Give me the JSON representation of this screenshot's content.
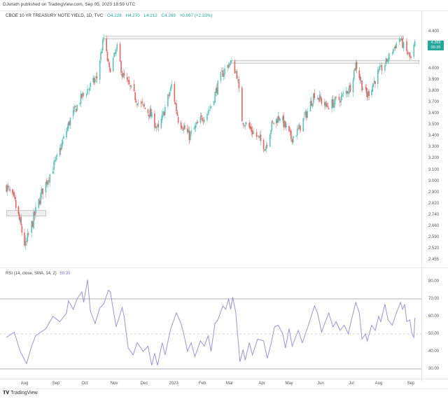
{
  "published": "DJwrath published on TradingView.com, Sep 05, 2023 18:59 UTC",
  "legend": {
    "symbol": "CBOE 10 YR TREASURY NOTE YIELD, 1D, TVC",
    "open": "O4.228",
    "high": "H4.270",
    "low": "L4.212",
    "close": "C4.269",
    "change": "+0.097 (+2.33%)"
  },
  "price_tag": {
    "value": "4.269",
    "countdown": "00:35"
  },
  "rsi_legend": {
    "label": "RSI (14, close, SMA, 14, 2)",
    "value": "59.30"
  },
  "watermark": {
    "logo": "TV",
    "text": "TradingView"
  },
  "colors": {
    "up": "#5fc1b4",
    "down": "#e06666",
    "rsi": "#9b95d3",
    "level": "#b0b0b0",
    "tag": "#26a69a"
  },
  "chart_data": [
    {
      "type": "candlestick",
      "title": "CBOE 10 YR TREASURY NOTE YIELD, 1D, TVC",
      "y_ticks": [
        "4.400",
        "4.000",
        "3.900",
        "3.800",
        "3.700",
        "3.600",
        "3.500",
        "3.400",
        "3.300",
        "3.200",
        "3.100",
        "3.000",
        "2.900",
        "2.820",
        "2.740",
        "2.660",
        "2.590",
        "2.520",
        "2.455"
      ],
      "x_ticks": [
        "Aug",
        "Sep",
        "Oct",
        "Nov",
        "Dec",
        "2023",
        "Feb",
        "Mar",
        "Apr",
        "May",
        "Jun",
        "Jul",
        "Aug",
        "Sep"
      ],
      "close_waypoints": [
        [
          "2022-07-11",
          2.95
        ],
        [
          "2022-07-21",
          2.82
        ],
        [
          "2022-08-02",
          2.53
        ],
        [
          "2022-08-18",
          2.9
        ],
        [
          "2022-09-02",
          3.2
        ],
        [
          "2022-09-16",
          3.55
        ],
        [
          "2022-09-28",
          3.75
        ],
        [
          "2022-10-14",
          3.92
        ],
        [
          "2022-10-21",
          4.33
        ],
        [
          "2022-10-27",
          3.98
        ],
        [
          "2022-11-04",
          4.22
        ],
        [
          "2022-11-09",
          3.95
        ],
        [
          "2022-11-25",
          3.7
        ],
        [
          "2022-12-07",
          3.6
        ],
        [
          "2022-12-16",
          3.45
        ],
        [
          "2022-12-30",
          3.85
        ],
        [
          "2023-01-06",
          3.55
        ],
        [
          "2023-01-18",
          3.4
        ],
        [
          "2023-01-31",
          3.55
        ],
        [
          "2023-02-09",
          3.65
        ],
        [
          "2023-02-21",
          3.95
        ],
        [
          "2023-03-02",
          4.07
        ],
        [
          "2023-03-08",
          3.95
        ],
        [
          "2023-03-13",
          3.55
        ],
        [
          "2023-03-22",
          3.45
        ],
        [
          "2023-04-05",
          3.3
        ],
        [
          "2023-04-12",
          3.5
        ],
        [
          "2023-04-21",
          3.58
        ],
        [
          "2023-05-03",
          3.38
        ],
        [
          "2023-05-10",
          3.45
        ],
        [
          "2023-05-18",
          3.6
        ],
        [
          "2023-05-26",
          3.78
        ],
        [
          "2023-06-07",
          3.66
        ],
        [
          "2023-06-21",
          3.74
        ],
        [
          "2023-06-30",
          3.84
        ],
        [
          "2023-07-06",
          4.05
        ],
        [
          "2023-07-13",
          3.85
        ],
        [
          "2023-07-19",
          3.76
        ],
        [
          "2023-07-31",
          3.95
        ],
        [
          "2023-08-07",
          4.05
        ],
        [
          "2023-08-14",
          4.19
        ],
        [
          "2023-08-21",
          4.33
        ],
        [
          "2023-08-25",
          4.24
        ],
        [
          "2023-09-01",
          4.1
        ],
        [
          "2023-09-05",
          4.27
        ]
      ],
      "horizontal_levels": [
        {
          "price": 4.33,
          "from": "2022-10-21",
          "to": "2023-08-21"
        },
        {
          "price": 4.07,
          "from": "2023-03-02",
          "to": "2023-09-05"
        },
        {
          "price_range": [
            2.74,
            2.77
          ],
          "from": "2022-07-11",
          "to": "2022-08-22"
        }
      ]
    },
    {
      "type": "line",
      "title": "RSI (14, close, SMA, 14, 2)",
      "y_ticks": [
        "80.00",
        "70.00",
        "60.00",
        "50.00",
        "40.00",
        "30.00"
      ],
      "ylim": [
        25,
        85
      ],
      "levels": [
        70,
        50,
        30
      ],
      "points": [
        [
          "2022-07-11",
          48
        ],
        [
          "2022-07-20",
          51
        ],
        [
          "2022-07-27",
          40
        ],
        [
          "2022-08-03",
          33
        ],
        [
          "2022-08-08",
          43
        ],
        [
          "2022-08-12",
          49
        ],
        [
          "2022-08-22",
          53
        ],
        [
          "2022-08-29",
          60
        ],
        [
          "2022-09-05",
          57
        ],
        [
          "2022-09-12",
          62
        ],
        [
          "2022-09-14",
          69
        ],
        [
          "2022-09-19",
          64
        ],
        [
          "2022-09-23",
          70
        ],
        [
          "2022-09-28",
          74
        ],
        [
          "2022-09-30",
          68
        ],
        [
          "2022-10-04",
          81
        ],
        [
          "2022-10-07",
          63
        ],
        [
          "2022-10-12",
          56
        ],
        [
          "2022-10-17",
          65
        ],
        [
          "2022-10-21",
          67
        ],
        [
          "2022-10-26",
          75
        ],
        [
          "2022-10-28",
          74
        ],
        [
          "2022-11-03",
          54
        ],
        [
          "2022-11-09",
          65
        ],
        [
          "2022-11-11",
          60
        ],
        [
          "2022-11-15",
          42
        ],
        [
          "2022-11-20",
          38
        ],
        [
          "2022-11-24",
          45
        ],
        [
          "2022-11-30",
          40
        ],
        [
          "2022-12-05",
          43
        ],
        [
          "2022-12-09",
          32
        ],
        [
          "2022-12-12",
          39
        ],
        [
          "2022-12-15",
          32
        ],
        [
          "2022-12-20",
          45
        ],
        [
          "2022-12-23",
          38
        ],
        [
          "2022-12-29",
          53
        ],
        [
          "2023-01-04",
          62
        ],
        [
          "2023-01-09",
          56
        ],
        [
          "2023-01-12",
          50
        ],
        [
          "2023-01-16",
          40
        ],
        [
          "2023-01-20",
          45
        ],
        [
          "2023-01-24",
          37
        ],
        [
          "2023-01-30",
          46
        ],
        [
          "2023-02-03",
          43
        ],
        [
          "2023-02-07",
          49
        ],
        [
          "2023-02-10",
          40
        ],
        [
          "2023-02-14",
          56
        ],
        [
          "2023-02-17",
          58
        ],
        [
          "2023-02-22",
          66
        ],
        [
          "2023-02-25",
          64
        ],
        [
          "2023-02-28",
          70
        ],
        [
          "2023-03-02",
          64
        ],
        [
          "2023-03-04",
          71
        ],
        [
          "2023-03-07",
          62
        ],
        [
          "2023-03-11",
          34
        ],
        [
          "2023-03-14",
          41
        ],
        [
          "2023-03-16",
          35
        ],
        [
          "2023-03-20",
          45
        ],
        [
          "2023-03-23",
          38
        ],
        [
          "2023-03-28",
          47
        ],
        [
          "2023-04-03",
          46
        ],
        [
          "2023-04-07",
          36
        ],
        [
          "2023-04-11",
          44
        ],
        [
          "2023-04-15",
          54
        ],
        [
          "2023-04-19",
          55
        ],
        [
          "2023-04-24",
          50
        ],
        [
          "2023-04-27",
          42
        ],
        [
          "2023-05-01",
          53
        ],
        [
          "2023-05-04",
          43
        ],
        [
          "2023-05-10",
          52
        ],
        [
          "2023-05-14",
          45
        ],
        [
          "2023-05-20",
          55
        ],
        [
          "2023-05-26",
          66
        ],
        [
          "2023-05-29",
          62
        ],
        [
          "2023-06-02",
          51
        ],
        [
          "2023-06-05",
          56
        ],
        [
          "2023-06-09",
          62
        ],
        [
          "2023-06-13",
          54
        ],
        [
          "2023-06-16",
          57
        ],
        [
          "2023-06-20",
          52
        ],
        [
          "2023-06-24",
          55
        ],
        [
          "2023-06-28",
          50
        ],
        [
          "2023-07-01",
          58
        ],
        [
          "2023-07-06",
          68
        ],
        [
          "2023-07-10",
          62
        ],
        [
          "2023-07-13",
          47
        ],
        [
          "2023-07-17",
          50
        ],
        [
          "2023-07-19",
          46
        ],
        [
          "2023-07-24",
          55
        ],
        [
          "2023-07-28",
          52
        ],
        [
          "2023-08-01",
          60
        ],
        [
          "2023-08-03",
          57
        ],
        [
          "2023-08-07",
          67
        ],
        [
          "2023-08-10",
          58
        ],
        [
          "2023-08-14",
          55
        ],
        [
          "2023-08-18",
          62
        ],
        [
          "2023-08-22",
          68
        ],
        [
          "2023-08-24",
          64
        ],
        [
          "2023-08-26",
          67
        ],
        [
          "2023-08-28",
          57
        ],
        [
          "2023-08-31",
          58
        ],
        [
          "2023-09-02",
          50
        ],
        [
          "2023-09-04",
          48
        ],
        [
          "2023-09-05",
          59.3
        ]
      ]
    }
  ]
}
